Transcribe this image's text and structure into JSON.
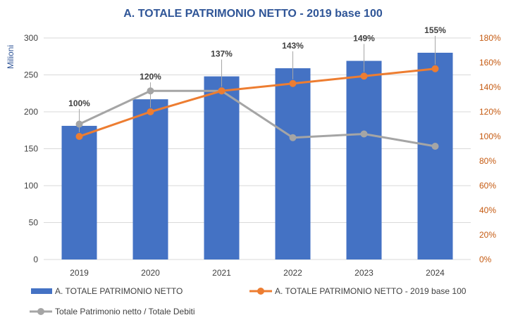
{
  "chart_data": {
    "type": "bar",
    "title": "A. TOTALE PATRIMONIO NETTO - 2019 base 100",
    "ylabel": "Milioni",
    "categories": [
      "2019",
      "2020",
      "2021",
      "2022",
      "2023",
      "2024"
    ],
    "y_axis": {
      "min": 0,
      "max": 300,
      "step": 50,
      "ticks": [
        "0",
        "50",
        "100",
        "150",
        "200",
        "250",
        "300"
      ]
    },
    "y2_axis": {
      "min": 0,
      "max": 180,
      "step": 20,
      "ticks": [
        "0%",
        "20%",
        "40%",
        "60%",
        "80%",
        "100%",
        "120%",
        "140%",
        "160%",
        "180%"
      ]
    },
    "series": [
      {
        "name": "A. TOTALE PATRIMONIO NETTO",
        "type": "bar",
        "axis": "left",
        "color": "#4472C4",
        "values": [
          181,
          217,
          248,
          259,
          269,
          280
        ]
      },
      {
        "name": "A. TOTALE PATRIMONIO NETTO - 2019 base 100",
        "type": "line",
        "axis": "right",
        "color": "#ED7D31",
        "values": [
          100,
          120,
          137,
          143,
          149,
          155
        ],
        "data_labels": [
          "100%",
          "120%",
          "137%",
          "143%",
          "149%",
          "155%"
        ]
      },
      {
        "name": "Totale Patrimonio netto / Totale Debiti",
        "type": "line",
        "axis": "right",
        "color": "#A5A5A5",
        "values": [
          110,
          137,
          137,
          99,
          102,
          92
        ]
      }
    ],
    "grid": true,
    "legend_position": "bottom",
    "colors": {
      "title": "#2F5597",
      "left_axis": "#404040",
      "right_axis": "#C55A11",
      "gridline": "#D9D9D9",
      "label_color": "#404040"
    }
  }
}
